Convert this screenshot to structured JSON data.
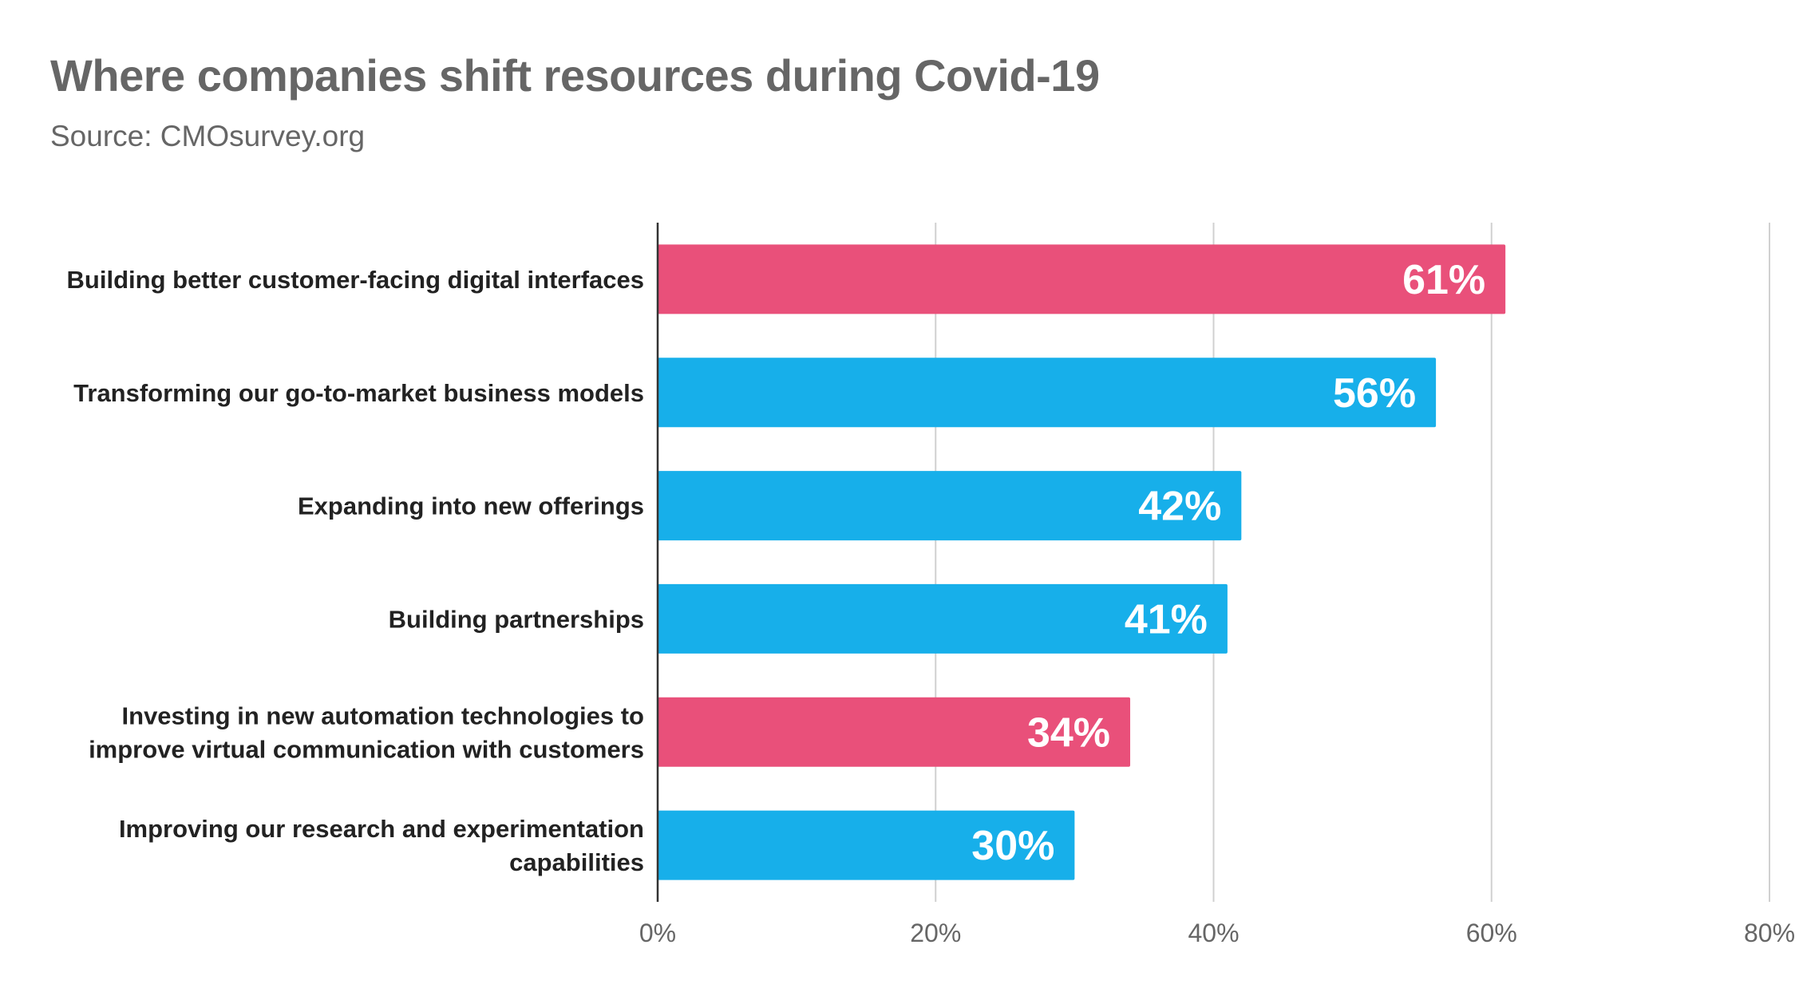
{
  "chart_data": {
    "type": "bar",
    "orientation": "horizontal",
    "title": "Where companies shift resources during Covid-19",
    "subtitle": "Source: CMOsurvey.org",
    "categories": [
      "Building better customer-facing digital interfaces",
      "Transforming our go-to-market business models",
      "Expanding into new offerings",
      "Building partnerships",
      "Investing in new automation technologies to improve virtual communication with customers",
      "Improving our research and experimentation capabilities"
    ],
    "category_lines": [
      [
        "Building better customer-facing digital interfaces"
      ],
      [
        "Transforming our go-to-market business models"
      ],
      [
        "Expanding into new offerings"
      ],
      [
        "Building partnerships"
      ],
      [
        "Investing in new automation technologies to",
        "improve virtual communication with customers"
      ],
      [
        "Improving our research and experimentation",
        "capabilities"
      ]
    ],
    "values": [
      61,
      56,
      42,
      41,
      34,
      30
    ],
    "data_labels": [
      "61%",
      "56%",
      "42%",
      "41%",
      "34%",
      "30%"
    ],
    "bar_colors": [
      "#E9507A",
      "#17AFEA",
      "#17AFEA",
      "#17AFEA",
      "#E9507A",
      "#17AFEA"
    ],
    "xlim": [
      0,
      80
    ],
    "xticks": [
      0,
      20,
      40,
      60,
      80
    ],
    "xtick_labels": [
      "0%",
      "20%",
      "40%",
      "60%",
      "80%"
    ],
    "xlabel": "",
    "ylabel": "",
    "grid": true,
    "legend": "none"
  }
}
